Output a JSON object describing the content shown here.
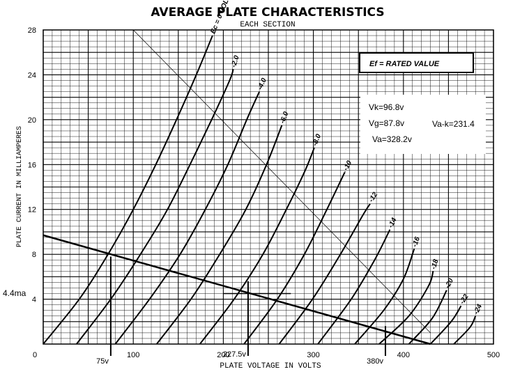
{
  "chart_data": {
    "type": "line",
    "title": "AVERAGE PLATE CHARACTERISTICS",
    "subtitle": "EACH SECTION",
    "xlabel": "PLATE VOLTAGE IN VOLTS",
    "ylabel": "PLATE CURRENT IN MILLIAMPERES",
    "xlim": [
      0,
      500
    ],
    "ylim": [
      0,
      28
    ],
    "grid": true,
    "x_ticks": [
      0,
      100,
      200,
      300,
      400,
      500
    ],
    "y_ticks": [
      0,
      4,
      8,
      12,
      16,
      20,
      24,
      28
    ],
    "x_tick_labels": [
      "0",
      "100",
      "200",
      "300",
      "400",
      "500"
    ],
    "y_tick_labels": [
      "0",
      "4",
      "8",
      "12",
      "16",
      "20",
      "24",
      "28"
    ],
    "legend_box": "Ef = RATED VALUE",
    "series": [
      {
        "name": "Ec = 0 VOLTS",
        "points": [
          [
            0,
            0
          ],
          [
            40,
            4
          ],
          [
            72,
            8
          ],
          [
            100,
            12
          ],
          [
            125,
            16
          ],
          [
            148,
            20
          ],
          [
            170,
            24
          ],
          [
            188,
            27.5
          ]
        ]
      },
      {
        "name": "-2.0",
        "points": [
          [
            37,
            0
          ],
          [
            75,
            4
          ],
          [
            108,
            8
          ],
          [
            138,
            12
          ],
          [
            163,
            16
          ],
          [
            187,
            20
          ],
          [
            207,
            23.5
          ],
          [
            211,
            24.5
          ]
        ]
      },
      {
        "name": "-4.0",
        "points": [
          [
            80,
            0
          ],
          [
            118,
            4
          ],
          [
            152,
            8
          ],
          [
            180,
            12
          ],
          [
            205,
            16
          ],
          [
            226,
            20
          ],
          [
            240,
            22.5
          ]
        ]
      },
      {
        "name": "-6.0",
        "points": [
          [
            126,
            0
          ],
          [
            164,
            4
          ],
          [
            196,
            8
          ],
          [
            225,
            12
          ],
          [
            248,
            16
          ],
          [
            265,
            19.5
          ]
        ]
      },
      {
        "name": "-8.0",
        "points": [
          [
            174,
            0
          ],
          [
            212,
            4
          ],
          [
            244,
            8
          ],
          [
            270,
            12
          ],
          [
            291,
            15.5
          ],
          [
            301,
            17.5
          ]
        ]
      },
      {
        "name": "-10",
        "points": [
          [
            223,
            0
          ],
          [
            260,
            4
          ],
          [
            290,
            8
          ],
          [
            315,
            12
          ],
          [
            333,
            15
          ],
          [
            335,
            15.3
          ]
        ]
      },
      {
        "name": "-12",
        "points": [
          [
            262,
            0
          ],
          [
            299,
            4
          ],
          [
            330,
            8
          ],
          [
            355,
            11.5
          ],
          [
            363,
            12.5
          ]
        ]
      },
      {
        "name": "-14",
        "points": [
          [
            305,
            0
          ],
          [
            342,
            4
          ],
          [
            368,
            7.5
          ],
          [
            385,
            10.2
          ]
        ]
      },
      {
        "name": "-16",
        "points": [
          [
            346,
            0
          ],
          [
            378,
            3
          ],
          [
            400,
            5.8
          ],
          [
            412,
            8.5
          ]
        ]
      },
      {
        "name": "-18",
        "points": [
          [
            373,
            0
          ],
          [
            406,
            2.5
          ],
          [
            428,
            5.2
          ],
          [
            433,
            6.5
          ]
        ]
      },
      {
        "name": "-20",
        "points": [
          [
            406,
            0
          ],
          [
            432,
            2.3
          ],
          [
            448,
            4.8
          ]
        ]
      },
      {
        "name": "-22",
        "points": [
          [
            430,
            0
          ],
          [
            453,
            2
          ],
          [
            464,
            3.4
          ]
        ]
      },
      {
        "name": "-24",
        "points": [
          [
            456,
            0
          ],
          [
            474,
            1.5
          ],
          [
            480,
            2.5
          ]
        ]
      }
    ],
    "load_line": {
      "points": [
        [
          0,
          9.7
        ],
        [
          430,
          0
        ]
      ]
    },
    "operating_line": {
      "points": [
        [
          155,
          0.1
        ],
        [
          325,
          0.1
        ]
      ]
    },
    "markers": [
      {
        "label": "75v",
        "x": 75
      },
      {
        "label": "227.5v",
        "x": 227.5
      },
      {
        "label": "380v",
        "x": 380
      }
    ],
    "q_point_label": "4.4ma",
    "q_point_y": 4.4,
    "annotations": [
      "Vk=96.8v",
      "Vg=87.8v",
      "Va=328.2v",
      "Va-k=231.4"
    ]
  }
}
